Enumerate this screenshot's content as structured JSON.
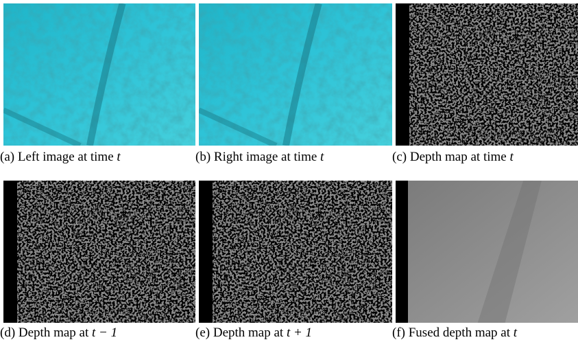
{
  "figure": {
    "panels": [
      {
        "label": "(a)",
        "text": "Left image at time",
        "math": "t"
      },
      {
        "label": "(b)",
        "text": "Right image at time",
        "math": "t"
      },
      {
        "label": "(c)",
        "text": "Depth map at time",
        "math": "t"
      },
      {
        "label": "(d)",
        "text": "Depth map at",
        "math": "t − 1"
      },
      {
        "label": "(e)",
        "text": "Depth map at",
        "math": "t + 1"
      },
      {
        "label": "(f)",
        "text": "Fused depth map at",
        "math": "t"
      }
    ]
  }
}
